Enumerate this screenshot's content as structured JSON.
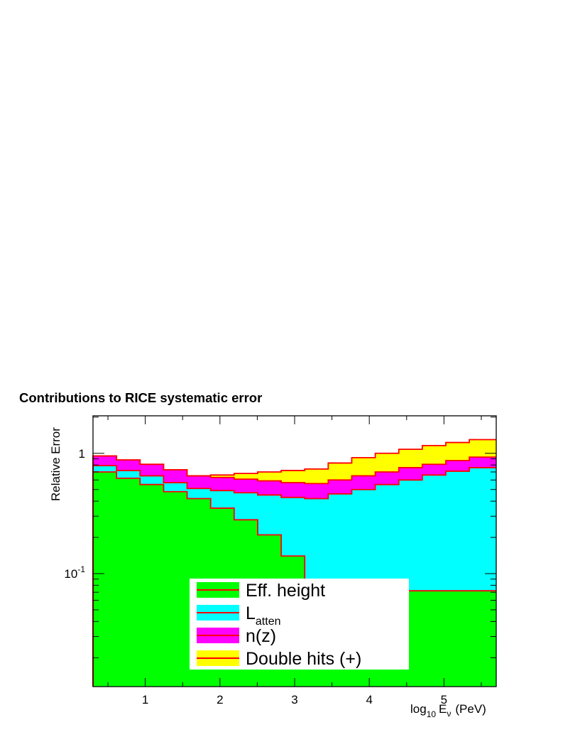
{
  "chart_data": {
    "type": "area",
    "title": "Contributions to RICE systematic error",
    "xlabel": {
      "main": "log",
      "sub": "10",
      "var": "E",
      "var_sub": "ν",
      "unit": "(PeV)"
    },
    "ylabel": "Relative Error",
    "xlim": [
      0.3,
      5.7
    ],
    "ylim": [
      0.0115,
      2.05
    ],
    "yscale": "log",
    "x_ticks": [
      {
        "value": 1,
        "label": "1"
      },
      {
        "value": 2,
        "label": "2"
      },
      {
        "value": 3,
        "label": "3"
      },
      {
        "value": 4,
        "label": "4"
      },
      {
        "value": 5,
        "label": "5"
      }
    ],
    "y_ticks": [
      {
        "value": 1,
        "label": "1"
      },
      {
        "value": 0.1,
        "label": "10",
        "sup": "-1"
      }
    ],
    "bin_edges": [
      0.3,
      0.615,
      0.93,
      1.245,
      1.56,
      1.875,
      2.19,
      2.505,
      2.82,
      3.135,
      3.45,
      3.765,
      4.08,
      4.395,
      4.71,
      5.025,
      5.34,
      5.7
    ],
    "series": [
      {
        "name": "Eff. height",
        "color": "#00ff00",
        "values": [
          0.7,
          0.62,
          0.55,
          0.48,
          0.42,
          0.35,
          0.28,
          0.21,
          0.14,
          0.074,
          0.073,
          0.073,
          0.073,
          0.072,
          0.072,
          0.072,
          0.072
        ]
      },
      {
        "name": "L",
        "name_sub": "atten",
        "color": "#00ffff",
        "values": [
          0.79,
          0.72,
          0.65,
          0.57,
          0.51,
          0.49,
          0.47,
          0.45,
          0.43,
          0.42,
          0.46,
          0.5,
          0.55,
          0.6,
          0.66,
          0.71,
          0.76
        ]
      },
      {
        "name": "n(z)",
        "color": "#ff00ff",
        "values": [
          0.95,
          0.88,
          0.81,
          0.73,
          0.65,
          0.63,
          0.61,
          0.59,
          0.57,
          0.56,
          0.6,
          0.65,
          0.7,
          0.76,
          0.81,
          0.87,
          0.93
        ]
      },
      {
        "name": "Double hits (+)",
        "color": "#ffff00",
        "values": [
          0.95,
          0.88,
          0.81,
          0.73,
          0.65,
          0.66,
          0.68,
          0.7,
          0.72,
          0.74,
          0.83,
          0.92,
          1.0,
          1.08,
          1.16,
          1.23,
          1.3
        ]
      }
    ],
    "outline_color": "#ff0000",
    "legend_position": "bottom-center"
  }
}
